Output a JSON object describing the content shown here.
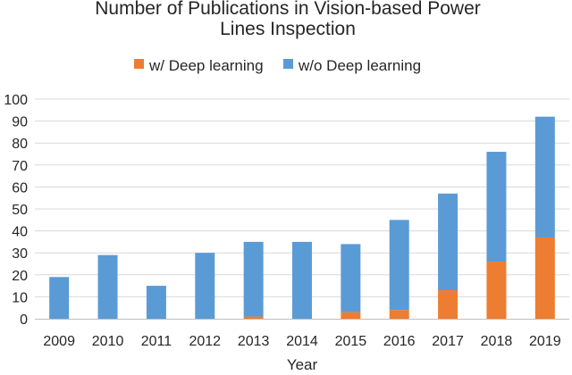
{
  "chart_data": {
    "type": "bar",
    "stacked": true,
    "title_lines": [
      "Number of Publications in Vision-based Power",
      "Lines Inspection"
    ],
    "xlabel": "Year",
    "ylabel": "",
    "categories": [
      "2009",
      "2010",
      "2011",
      "2012",
      "2013",
      "2014",
      "2015",
      "2016",
      "2017",
      "2018",
      "2019"
    ],
    "series": [
      {
        "name": "w/ Deep learning",
        "color": "#ed7d31",
        "values": [
          0,
          0,
          0,
          0,
          1,
          0,
          3,
          4,
          13,
          26,
          37
        ]
      },
      {
        "name": "w/o Deep learning",
        "color": "#5b9bd5",
        "values": [
          19,
          29,
          15,
          30,
          34,
          35,
          31,
          41,
          44,
          50,
          55
        ]
      }
    ],
    "ylim": [
      0,
      100
    ],
    "yticks": [
      "0",
      "10",
      "20",
      "30",
      "40",
      "50",
      "60",
      "70",
      "80",
      "90",
      "100"
    ],
    "grid": true,
    "legend_position": "top"
  }
}
